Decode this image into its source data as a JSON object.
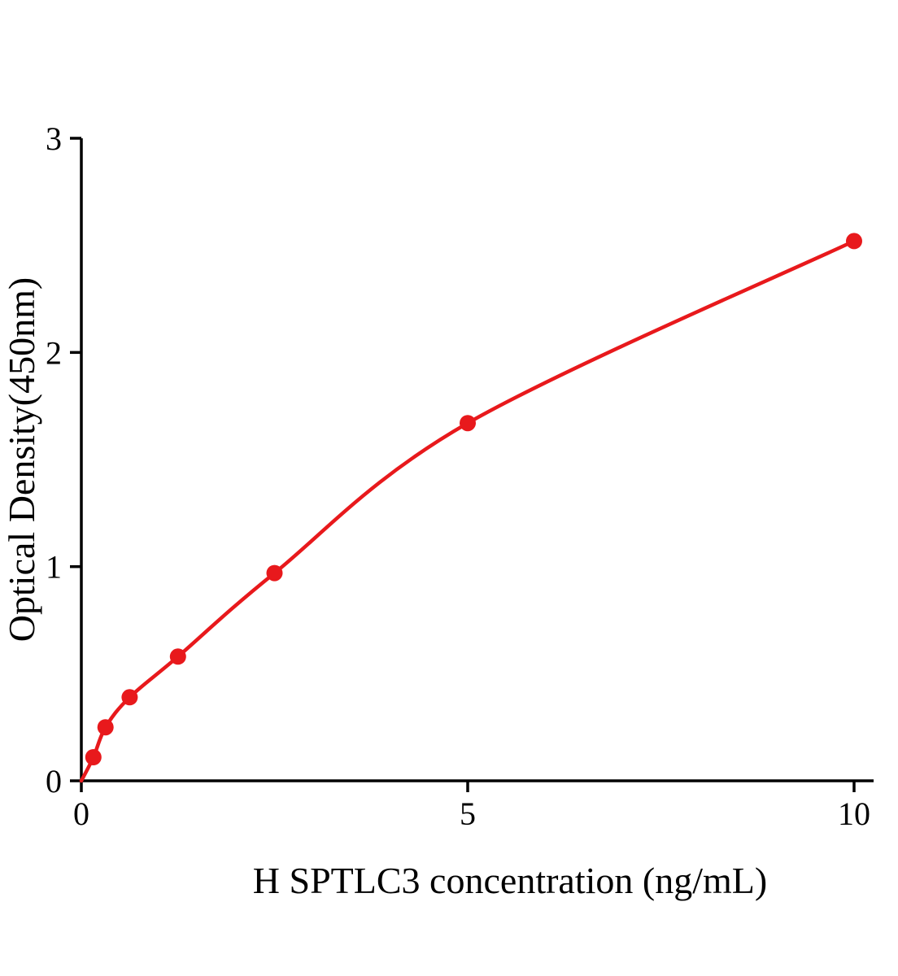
{
  "chart_data": {
    "type": "scatter",
    "title": "",
    "xlabel": "H SPTLC3 concentration (ng/mL)",
    "ylabel": "Optical Density(450nm)",
    "x": [
      0.156,
      0.3125,
      0.625,
      1.25,
      2.5,
      5,
      10
    ],
    "y": [
      0.11,
      0.25,
      0.39,
      0.58,
      0.97,
      1.67,
      2.52
    ],
    "curve_start": [
      0,
      0
    ],
    "xlim": [
      0,
      10
    ],
    "ylim": [
      0,
      3
    ],
    "xticks": [
      0,
      5,
      10
    ],
    "yticks": [
      0,
      1,
      2,
      3
    ],
    "grid": false,
    "legend": "none",
    "line_color": "#e8191c",
    "marker_color": "#e8191c",
    "axis_color": "#000000",
    "line_width": 4.5,
    "marker_radius": 10
  }
}
